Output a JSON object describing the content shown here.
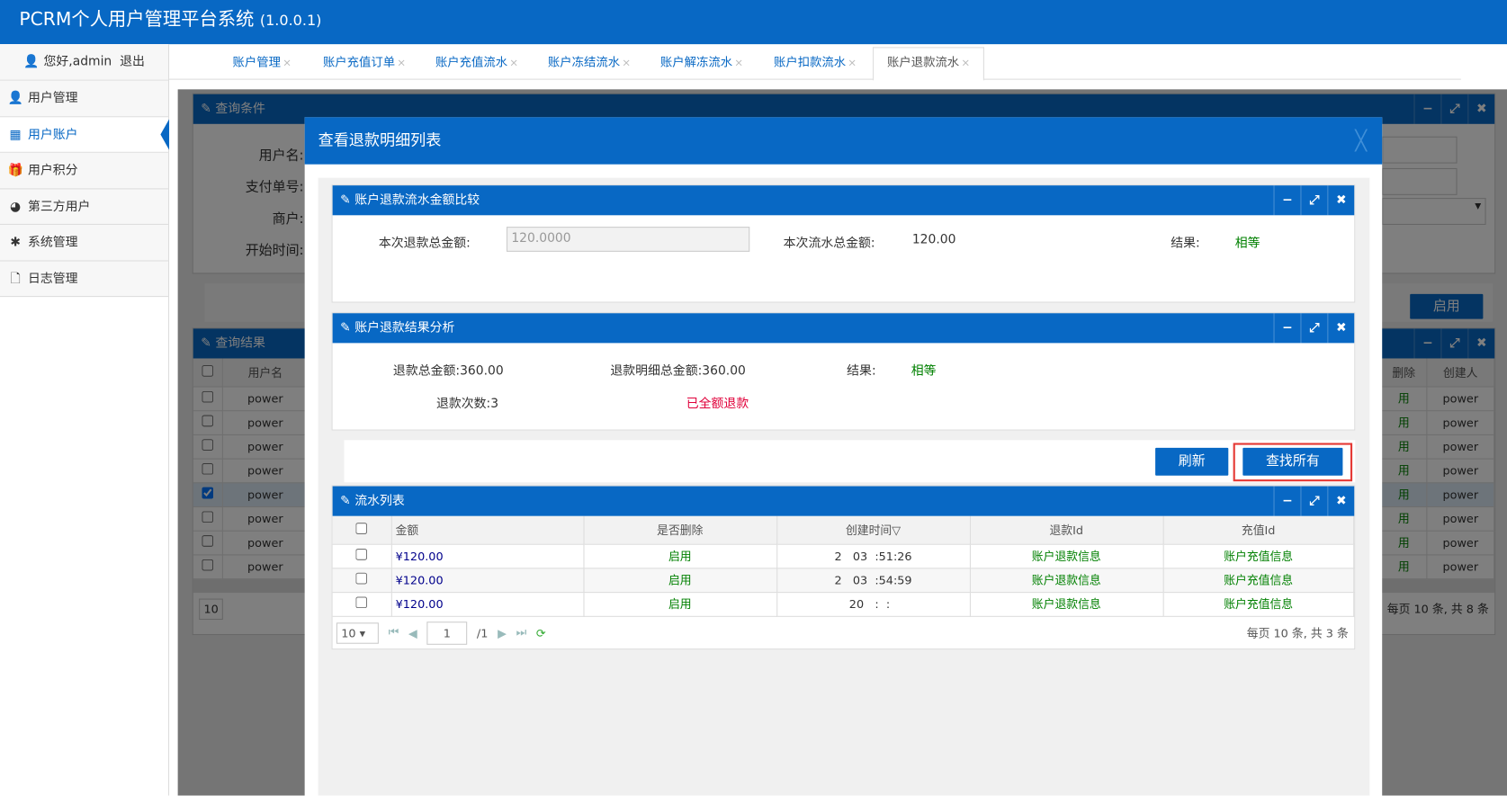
{
  "app": {
    "title": "PCRM个人用户管理平台系统",
    "version": "(1.0.0.1)"
  },
  "user": {
    "greeting": "您好,admin",
    "logout": "退出"
  },
  "sidebar": {
    "items": [
      {
        "label": "用户管理",
        "icon": "user-icon"
      },
      {
        "label": "用户账户",
        "icon": "qrcode-icon",
        "active": true
      },
      {
        "label": "用户积分",
        "icon": "gift-icon"
      },
      {
        "label": "第三方用户",
        "icon": "globe-icon"
      },
      {
        "label": "系统管理",
        "icon": "asterisk-icon"
      },
      {
        "label": "日志管理",
        "icon": "file-icon"
      }
    ]
  },
  "tabs": [
    {
      "label": "账户管理"
    },
    {
      "label": "账户充值订单"
    },
    {
      "label": "账户充值流水"
    },
    {
      "label": "账户冻结流水"
    },
    {
      "label": "账户解冻流水"
    },
    {
      "label": "账户扣款流水"
    },
    {
      "label": "账户退款流水",
      "active": true
    }
  ],
  "tab_close": "×",
  "background": {
    "query_panel": {
      "title": "查询条件",
      "labels": [
        "用户名:",
        "支付单号:",
        "商户:",
        "开始时间:"
      ]
    },
    "enable_button": "启用",
    "result_panel": {
      "title": "查询结果",
      "col_username": "用户名",
      "col_delete": "删除",
      "col_creator": "创建人",
      "rows": [
        "power",
        "power",
        "power",
        "power",
        "power",
        "power",
        "power",
        "power"
      ],
      "delete_val": "用",
      "checked_row": 4,
      "page_size": "10",
      "summary": "每页 10 条, 共 8 条"
    }
  },
  "modal": {
    "title": "查看退款明细列表",
    "close": "╳",
    "compare_panel": {
      "title": "账户退款流水金额比较",
      "refund_total_label": "本次退款总金额:",
      "refund_total_value": "120.0000",
      "flow_total_label": "本次流水总金额:",
      "flow_total_value": "120.00",
      "result_label": "结果:",
      "result_value": "相等"
    },
    "analysis_panel": {
      "title": "账户退款结果分析",
      "refund_sum_label": "退款总金额:",
      "refund_sum_value": "360.00",
      "detail_sum_label": "退款明细总金额:",
      "detail_sum_value": "360.00",
      "result_label": "结果:",
      "result_value": "相等",
      "count_label": "退款次数:",
      "count_value": "3",
      "status": "已全额退款"
    },
    "buttons": {
      "refresh": "刷新",
      "find_all": "查找所有"
    },
    "flow_panel": {
      "title": "流水列表",
      "columns": [
        "金额",
        "是否删除",
        "创建时间▽",
        "退款Id",
        "充值Id"
      ],
      "rows": [
        {
          "amount": "¥120.00",
          "deleted": "启用",
          "time": "2   03  :51:26",
          "refund": "账户退款信息",
          "recharge": "账户充值信息"
        },
        {
          "amount": "¥120.00",
          "deleted": "启用",
          "time": "2   03  :54:59",
          "refund": "账户退款信息",
          "recharge": "账户充值信息"
        },
        {
          "amount": "¥120.00",
          "deleted": "启用",
          "time": "20   :  :  ",
          "refund": "账户退款信息",
          "recharge": "账户充值信息"
        }
      ],
      "pager": {
        "page_size": "10",
        "page": "1",
        "total_pages": "/1",
        "summary": "每页 10 条, 共 3 条"
      }
    }
  },
  "colors": {
    "brand": "#0868c4",
    "green": "#008000",
    "red": "#e0003a",
    "highlight": "#e53935"
  }
}
